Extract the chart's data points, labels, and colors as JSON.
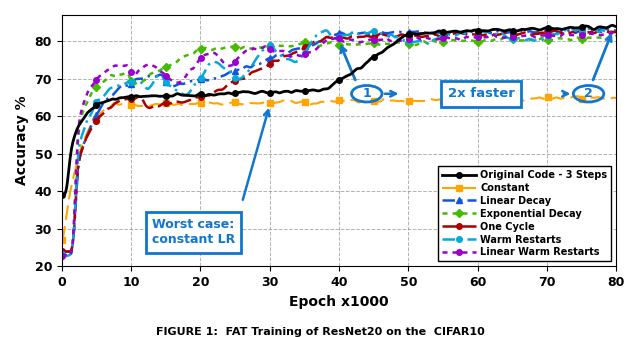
{
  "xlabel": "Epoch x1000",
  "ylabel": "Accuracy %",
  "xlim": [
    0,
    80
  ],
  "ylim": [
    20,
    87
  ],
  "yticks": [
    20,
    30,
    40,
    50,
    60,
    70,
    80
  ],
  "xticks": [
    0,
    10,
    20,
    30,
    40,
    50,
    60,
    70,
    80
  ],
  "legend_entries": [
    "Original Code - 3 Steps",
    "Constant",
    "Linear Decay",
    "Exponential Decay",
    "One Cycle",
    "Warm Restarts",
    "Linear Warm Restarts"
  ],
  "line_colors": [
    "#000000",
    "#FFA500",
    "#1155DD",
    "#44BB00",
    "#AA0000",
    "#00AADD",
    "#9900CC"
  ],
  "annotation_worst": "Worst case:\nconstant LR",
  "annotation_2x": "2x faster",
  "blue_color": "#1177CC"
}
